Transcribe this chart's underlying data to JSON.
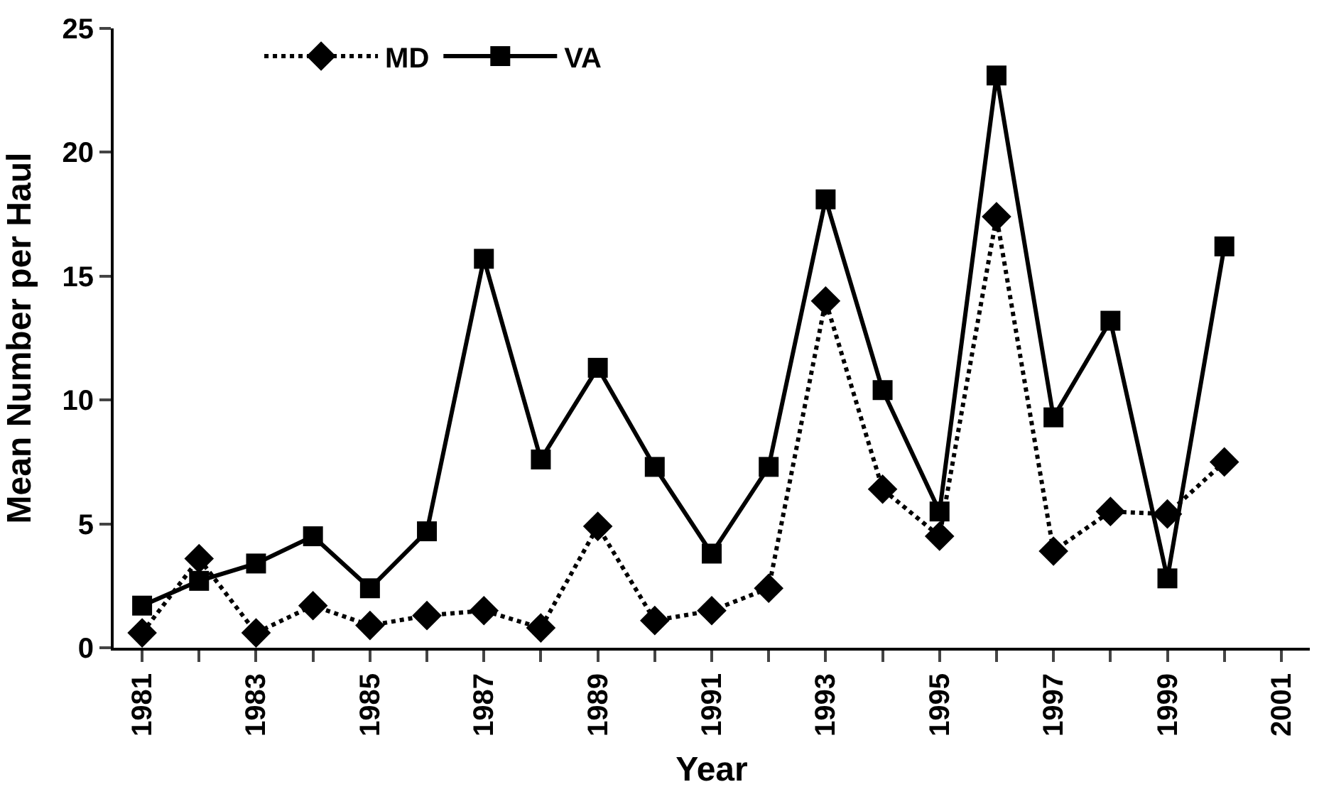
{
  "chart_data": {
    "type": "line",
    "xlabel": "Year",
    "ylabel": "Mean Number per Haul",
    "x": [
      1981,
      1982,
      1983,
      1984,
      1985,
      1986,
      1987,
      1988,
      1989,
      1990,
      1991,
      1992,
      1993,
      1994,
      1995,
      1996,
      1997,
      1998,
      1999,
      2000
    ],
    "series": [
      {
        "name": "MD",
        "color": "#000000",
        "marker": "diamond",
        "line_style": "dotted",
        "values": [
          0.6,
          3.6,
          0.6,
          1.7,
          0.9,
          1.3,
          1.5,
          0.8,
          4.9,
          1.1,
          1.5,
          2.4,
          14.0,
          6.4,
          4.5,
          17.4,
          3.9,
          5.5,
          5.4,
          7.5
        ]
      },
      {
        "name": "VA",
        "color": "#000000",
        "marker": "square",
        "line_style": "solid",
        "values": [
          1.7,
          2.7,
          3.4,
          4.5,
          2.4,
          4.7,
          15.7,
          7.6,
          11.3,
          7.3,
          3.8,
          7.3,
          18.1,
          10.4,
          5.5,
          23.1,
          9.3,
          13.2,
          2.8,
          16.2
        ]
      }
    ],
    "xlim": [
      1980.5,
      2001.5
    ],
    "xticks": [
      1981,
      {
        "value": 1982,
        "label": null
      },
      1983,
      {
        "value": 1984,
        "label": null
      },
      1985,
      {
        "value": 1986,
        "label": null
      },
      1987,
      {
        "value": 1988,
        "label": null
      },
      1989,
      {
        "value": 1990,
        "label": null
      },
      1991,
      {
        "value": 1992,
        "label": null
      },
      1993,
      {
        "value": 1994,
        "label": null
      },
      1995,
      {
        "value": 1996,
        "label": null
      },
      1997,
      {
        "value": 1998,
        "label": null
      },
      1999,
      {
        "value": 2000,
        "label": null
      },
      2001
    ],
    "ylim": [
      0,
      25
    ],
    "yticks": [
      0,
      5,
      10,
      15,
      20,
      25
    ],
    "legend": "top left"
  }
}
